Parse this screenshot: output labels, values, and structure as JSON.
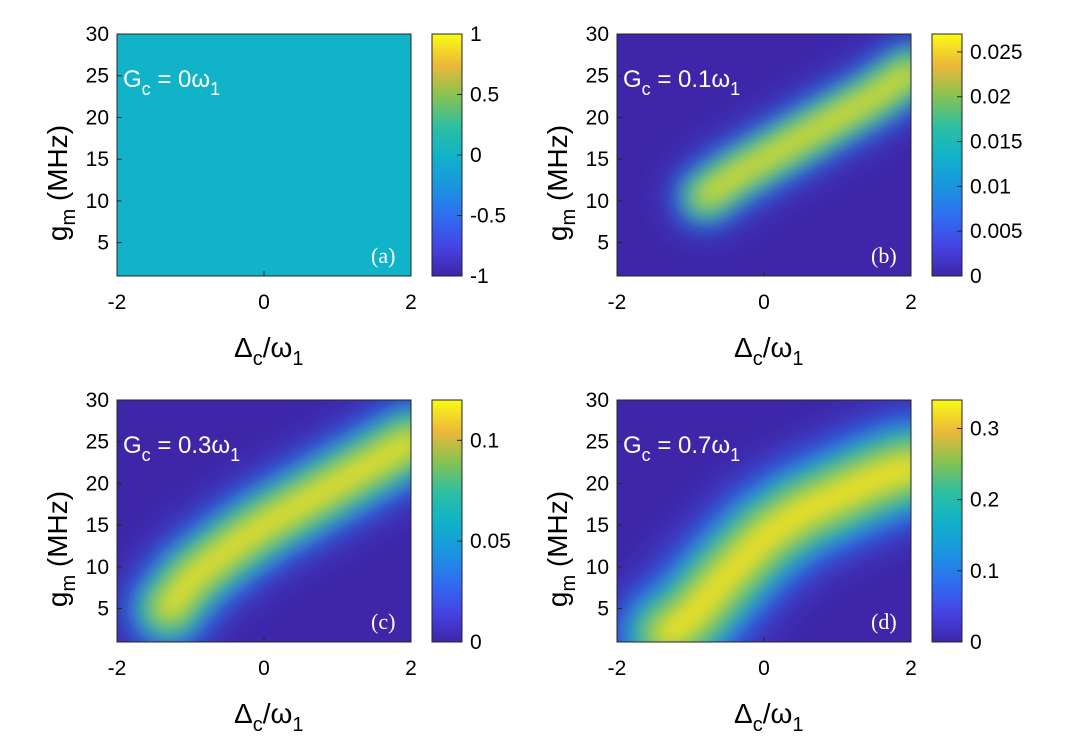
{
  "colors": {
    "parula_low": "#3e26a8",
    "parula_mid": "#2ebfa0",
    "parula_high": "#f9fb15"
  },
  "chart_data": [
    {
      "type": "heatmap",
      "panel_label": "(a)",
      "annotation": {
        "main": "G",
        "sub": "c",
        "eq": " = 0",
        "omega": "ω",
        "omega_sub": "1"
      },
      "xlabel": {
        "main": "Δ",
        "sub": "c",
        "slash": "/",
        "omega": "ω",
        "omega_sub": "1"
      },
      "ylabel": {
        "main": "g",
        "sub": "m",
        "unit": " (MHz)"
      },
      "xlim": [
        -2,
        2
      ],
      "ylim": [
        1,
        30
      ],
      "xticks": [
        "-2",
        "0",
        "2"
      ],
      "yticks": [
        "5",
        "10",
        "15",
        "20",
        "25",
        "30"
      ],
      "clim": [
        -1,
        1
      ],
      "colorbar_ticks": [
        "-1",
        "-0.5",
        "0",
        "0.5",
        "1"
      ],
      "colorbar_values": [
        -1,
        -0.5,
        0,
        0.5,
        1
      ],
      "peak": 0.0,
      "ridge_x": [
        -2,
        -1.5,
        -1,
        -0.5,
        0,
        0.5,
        1,
        1.5,
        2
      ],
      "ridge_y": [
        null,
        null,
        null,
        null,
        null,
        null,
        null,
        null,
        null
      ]
    },
    {
      "type": "heatmap",
      "panel_label": "(b)",
      "annotation": {
        "main": "G",
        "sub": "c",
        "eq": " = 0.1",
        "omega": "ω",
        "omega_sub": "1"
      },
      "xlabel": {
        "main": "Δ",
        "sub": "c",
        "slash": "/",
        "omega": "ω",
        "omega_sub": "1"
      },
      "ylabel": {
        "main": "g",
        "sub": "m",
        "unit": " (MHz)"
      },
      "xlim": [
        -2,
        2
      ],
      "ylim": [
        1,
        30
      ],
      "xticks": [
        "-2",
        "0",
        "2"
      ],
      "yticks": [
        "5",
        "10",
        "15",
        "20",
        "25",
        "30"
      ],
      "clim": [
        0,
        0.027
      ],
      "colorbar_ticks": [
        "0",
        "0.005",
        "0.01",
        "0.015",
        "0.02",
        "0.025"
      ],
      "colorbar_values": [
        0,
        0.005,
        0.01,
        0.015,
        0.02,
        0.025
      ],
      "peak": 0.027,
      "ridge_x": [
        -0.8,
        -0.4,
        0,
        0.5,
        1,
        1.5,
        2
      ],
      "ridge_y": [
        10.5,
        13,
        15,
        17.5,
        20,
        22.5,
        25.5
      ]
    },
    {
      "type": "heatmap",
      "panel_label": "(c)",
      "annotation": {
        "main": "G",
        "sub": "c",
        "eq": " = 0.3",
        "omega": "ω",
        "omega_sub": "1"
      },
      "xlabel": {
        "main": "Δ",
        "sub": "c",
        "slash": "/",
        "omega": "ω",
        "omega_sub": "1"
      },
      "ylabel": {
        "main": "g",
        "sub": "m",
        "unit": " (MHz)"
      },
      "xlim": [
        -2,
        2
      ],
      "ylim": [
        1,
        30
      ],
      "xticks": [
        "-2",
        "0",
        "2"
      ],
      "yticks": [
        "5",
        "10",
        "15",
        "20",
        "25",
        "30"
      ],
      "clim": [
        0,
        0.12
      ],
      "colorbar_ticks": [
        "0",
        "0.05",
        "0.1"
      ],
      "colorbar_values": [
        0,
        0.05,
        0.1
      ],
      "peak": 0.12,
      "ridge_x": [
        -1.3,
        -1,
        -0.5,
        0,
        0.5,
        1,
        1.5,
        2
      ],
      "ridge_y": [
        5,
        8.5,
        12,
        15,
        17.5,
        20,
        22.5,
        25
      ]
    },
    {
      "type": "heatmap",
      "panel_label": "(d)",
      "annotation": {
        "main": "G",
        "sub": "c",
        "eq": " = 0.7",
        "omega": "ω",
        "omega_sub": "1"
      },
      "xlabel": {
        "main": "Δ",
        "sub": "c",
        "slash": "/",
        "omega": "ω",
        "omega_sub": "1"
      },
      "ylabel": {
        "main": "g",
        "sub": "m",
        "unit": " (MHz)"
      },
      "xlim": [
        -2,
        2
      ],
      "ylim": [
        1,
        30
      ],
      "xticks": [
        "-2",
        "0",
        "2"
      ],
      "yticks": [
        "5",
        "10",
        "15",
        "20",
        "25",
        "30"
      ],
      "clim": [
        0,
        0.34
      ],
      "colorbar_ticks": [
        "0",
        "0.1",
        "0.2",
        "0.3"
      ],
      "colorbar_values": [
        0,
        0.1,
        0.2,
        0.3
      ],
      "peak": 0.34,
      "ridge_x": [
        -1.3,
        -1,
        -0.5,
        0,
        0.5,
        1,
        1.5,
        2
      ],
      "ridge_y": [
        2,
        4,
        9,
        13.5,
        16.5,
        18.5,
        20.5,
        22
      ]
    }
  ]
}
